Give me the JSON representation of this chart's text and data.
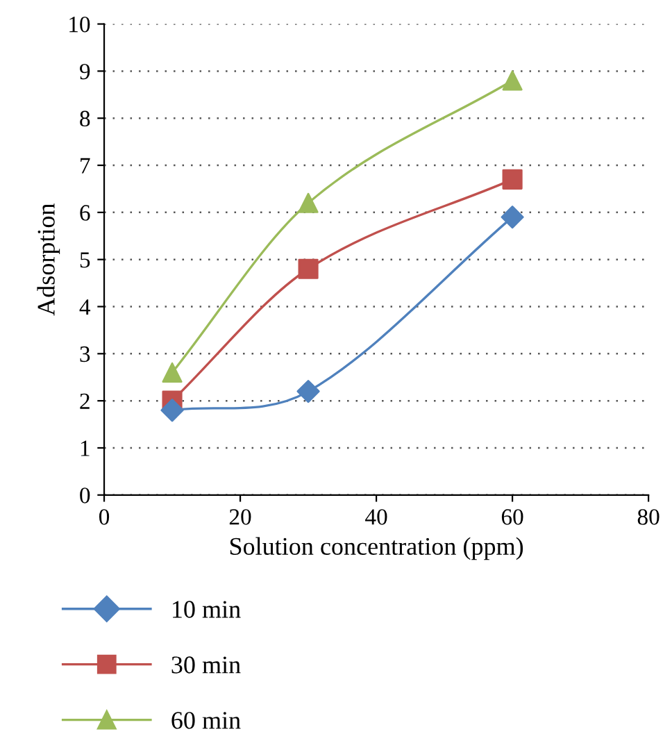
{
  "chart_data": {
    "type": "line",
    "xlabel": "Solution concentration (ppm)",
    "ylabel": "Adsorption",
    "xlim": [
      0,
      80
    ],
    "xticks": [
      0,
      20,
      40,
      60,
      80
    ],
    "ylim": [
      0,
      10
    ],
    "yticks": [
      0,
      1,
      2,
      3,
      4,
      5,
      6,
      7,
      8,
      9,
      10
    ],
    "grid": "y",
    "legend": "bottom",
    "line_style": "solid",
    "series": [
      {
        "name": "10 min",
        "color": "#4f81bd",
        "marker": "diamond",
        "x": [
          10,
          30,
          60
        ],
        "values": [
          1.8,
          2.2,
          5.9
        ]
      },
      {
        "name": "30 min",
        "color": "#c0504d",
        "marker": "square",
        "x": [
          10,
          30,
          60
        ],
        "values": [
          2.0,
          4.8,
          6.7
        ]
      },
      {
        "name": "60 min",
        "color": "#9bbb59",
        "marker": "triangle",
        "x": [
          10,
          30,
          60
        ],
        "values": [
          2.6,
          6.2,
          8.8
        ]
      }
    ]
  }
}
